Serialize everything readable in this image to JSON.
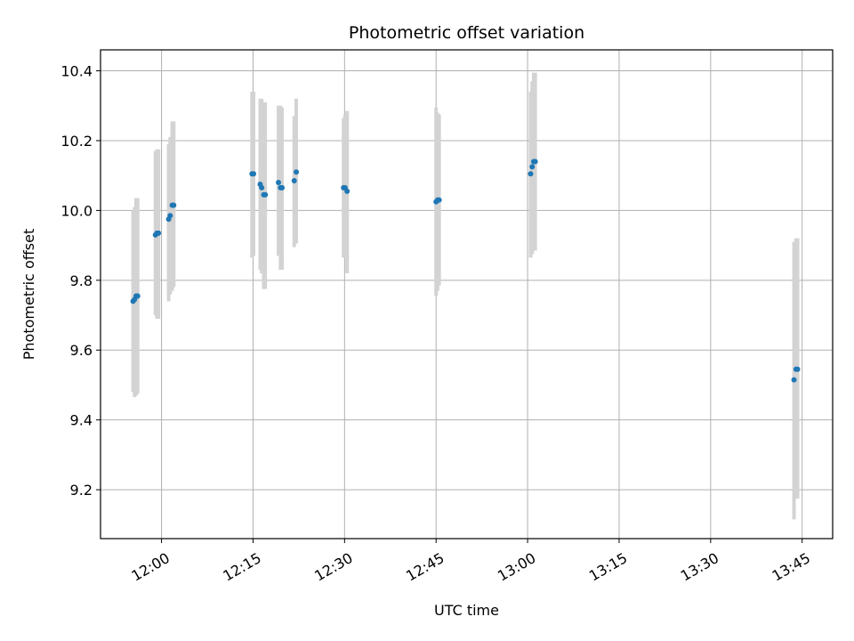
{
  "chart_data": {
    "type": "scatter",
    "title": "Photometric offset variation",
    "xlabel": "UTC time",
    "ylabel": "Photometric offset",
    "x_ticks": [
      "12:00",
      "12:15",
      "12:30",
      "12:45",
      "13:00",
      "13:15",
      "13:30",
      "13:45"
    ],
    "y_ticks": [
      "9.2",
      "9.4",
      "9.6",
      "9.8",
      "10.0",
      "10.2",
      "10.4"
    ],
    "xlim": [
      "11:50",
      "13:50"
    ],
    "ylim": [
      9.06,
      10.46
    ],
    "grid": true,
    "colors": {
      "point": "#1f77b4",
      "errorbar": "#d3d3d3",
      "grid": "#b0b0b0"
    },
    "series": [
      {
        "points": [
          {
            "time": "11:55:20",
            "y": 9.74,
            "lo": 9.48,
            "hi": 10.0
          },
          {
            "time": "11:55:35",
            "y": 9.745,
            "lo": 9.465,
            "hi": 10.01
          },
          {
            "time": "11:55:50",
            "y": 9.755,
            "lo": 9.47,
            "hi": 10.035
          },
          {
            "time": "11:56:05",
            "y": 9.755,
            "lo": 9.475,
            "hi": 10.035
          },
          {
            "time": "11:59:00",
            "y": 9.93,
            "lo": 9.7,
            "hi": 10.17
          },
          {
            "time": "11:59:15",
            "y": 9.935,
            "lo": 9.69,
            "hi": 10.175
          },
          {
            "time": "11:59:30",
            "y": 9.935,
            "lo": 9.69,
            "hi": 10.175
          },
          {
            "time": "12:01:10",
            "y": 9.975,
            "lo": 9.74,
            "hi": 10.19
          },
          {
            "time": "12:01:25",
            "y": 9.985,
            "lo": 9.76,
            "hi": 10.21
          },
          {
            "time": "12:01:45",
            "y": 10.015,
            "lo": 9.77,
            "hi": 10.255
          },
          {
            "time": "12:02:00",
            "y": 10.015,
            "lo": 9.78,
            "hi": 10.255
          },
          {
            "time": "12:14:50",
            "y": 10.105,
            "lo": 9.865,
            "hi": 10.34
          },
          {
            "time": "12:15:05",
            "y": 10.105,
            "lo": 9.87,
            "hi": 10.34
          },
          {
            "time": "12:16:10",
            "y": 10.075,
            "lo": 9.83,
            "hi": 10.32
          },
          {
            "time": "12:16:25",
            "y": 10.065,
            "lo": 9.82,
            "hi": 10.32
          },
          {
            "time": "12:16:45",
            "y": 10.045,
            "lo": 9.775,
            "hi": 10.31
          },
          {
            "time": "12:17:00",
            "y": 10.045,
            "lo": 9.775,
            "hi": 10.31
          },
          {
            "time": "12:19:10",
            "y": 10.08,
            "lo": 9.87,
            "hi": 10.3
          },
          {
            "time": "12:19:30",
            "y": 10.065,
            "lo": 9.83,
            "hi": 10.3
          },
          {
            "time": "12:19:45",
            "y": 10.065,
            "lo": 9.83,
            "hi": 10.295
          },
          {
            "time": "12:21:45",
            "y": 10.085,
            "lo": 9.895,
            "hi": 10.27
          },
          {
            "time": "12:22:05",
            "y": 10.11,
            "lo": 9.905,
            "hi": 10.32
          },
          {
            "time": "12:29:50",
            "y": 10.065,
            "lo": 9.865,
            "hi": 10.265
          },
          {
            "time": "12:30:05",
            "y": 10.065,
            "lo": 9.87,
            "hi": 10.275
          },
          {
            "time": "12:30:25",
            "y": 10.055,
            "lo": 9.82,
            "hi": 10.285
          },
          {
            "time": "12:45:00",
            "y": 10.025,
            "lo": 9.755,
            "hi": 10.295
          },
          {
            "time": "12:45:15",
            "y": 10.03,
            "lo": 9.77,
            "hi": 10.28
          },
          {
            "time": "12:45:30",
            "y": 10.03,
            "lo": 9.785,
            "hi": 10.275
          },
          {
            "time": "13:00:30",
            "y": 10.105,
            "lo": 9.865,
            "hi": 10.34
          },
          {
            "time": "13:00:45",
            "y": 10.125,
            "lo": 9.875,
            "hi": 10.37
          },
          {
            "time": "13:01:00",
            "y": 10.14,
            "lo": 9.885,
            "hi": 10.395
          },
          {
            "time": "13:01:15",
            "y": 10.14,
            "lo": 9.885,
            "hi": 10.395
          },
          {
            "time": "13:43:40",
            "y": 9.515,
            "lo": 9.115,
            "hi": 9.91
          },
          {
            "time": "13:44:00",
            "y": 9.545,
            "lo": 9.175,
            "hi": 9.92
          },
          {
            "time": "13:44:15",
            "y": 9.545,
            "lo": 9.175,
            "hi": 9.92
          }
        ]
      }
    ]
  }
}
